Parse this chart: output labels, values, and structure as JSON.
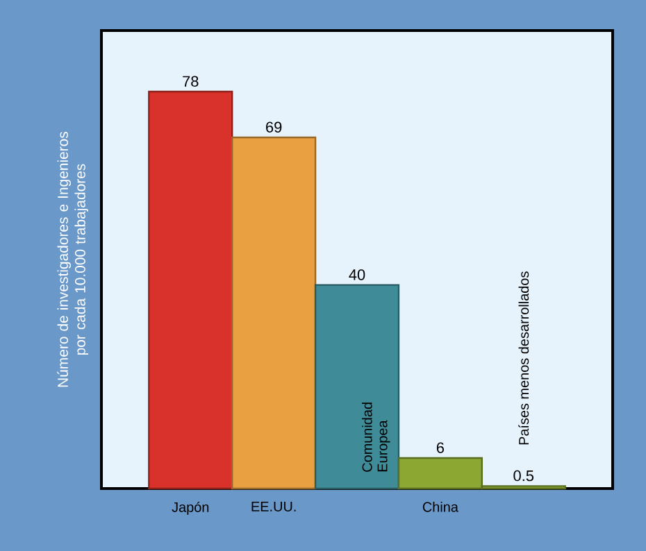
{
  "chart_data": {
    "type": "bar",
    "ylabel": "Número de investigadores e Ingenieros por cada 10.000 trabajadores",
    "categories": [
      "Japón",
      "EE.UU.",
      "Comunidad Europea",
      "China",
      "Países menos desarrollados"
    ],
    "values": [
      78,
      69,
      40,
      6,
      0.5
    ],
    "colors": [
      "#d8322a",
      "#e8a040",
      "#3f8c98",
      "#8aa832",
      "#8aa832"
    ],
    "ylim": [
      0,
      90
    ],
    "data_labels": true
  }
}
